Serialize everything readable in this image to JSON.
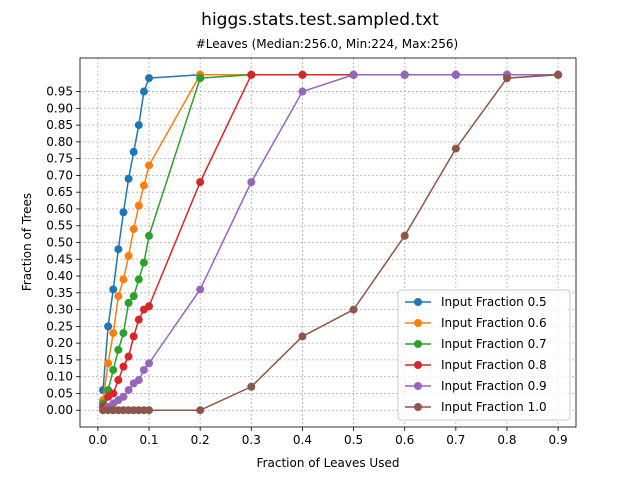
{
  "chart_data": {
    "type": "line",
    "title": "higgs.stats.test.sampled.txt",
    "subtitle": "#Leaves (Median:256.0, Min:224, Max:256)",
    "xlabel": "Fraction of Leaves Used",
    "ylabel": "Fraction of Trees",
    "xlim": [
      -0.035,
      0.935
    ],
    "ylim": [
      -0.05,
      1.05
    ],
    "x_ticks": [
      "0.0",
      "0.1",
      "0.2",
      "0.3",
      "0.4",
      "0.5",
      "0.6",
      "0.7",
      "0.8",
      "0.9"
    ],
    "x_tick_values": [
      0.0,
      0.1,
      0.2,
      0.3,
      0.4,
      0.5,
      0.6,
      0.7,
      0.8,
      0.9
    ],
    "y_ticks": [
      "0.00",
      "0.05",
      "0.10",
      "0.15",
      "0.20",
      "0.25",
      "0.30",
      "0.35",
      "0.40",
      "0.45",
      "0.50",
      "0.55",
      "0.60",
      "0.65",
      "0.70",
      "0.75",
      "0.80",
      "0.85",
      "0.90",
      "0.95"
    ],
    "y_tick_values": [
      0.0,
      0.05,
      0.1,
      0.15,
      0.2,
      0.25,
      0.3,
      0.35,
      0.4,
      0.45,
      0.5,
      0.55,
      0.6,
      0.65,
      0.7,
      0.75,
      0.8,
      0.85,
      0.9,
      0.95
    ],
    "grid": true,
    "legend_position": "lower-right",
    "series": [
      {
        "name": "Input Fraction 0.5",
        "color": "#1f77b4",
        "x": [
          0.01,
          0.02,
          0.03,
          0.04,
          0.05,
          0.06,
          0.07,
          0.08,
          0.09,
          0.1,
          0.2,
          0.3,
          0.4,
          0.5,
          0.6,
          0.7,
          0.8,
          0.9
        ],
        "y": [
          0.06,
          0.25,
          0.36,
          0.48,
          0.59,
          0.69,
          0.77,
          0.85,
          0.95,
          0.99,
          1.0,
          1.0,
          1.0,
          1.0,
          1.0,
          1.0,
          1.0,
          1.0
        ]
      },
      {
        "name": "Input Fraction 0.6",
        "color": "#ff7f0e",
        "x": [
          0.01,
          0.02,
          0.03,
          0.04,
          0.05,
          0.06,
          0.07,
          0.08,
          0.09,
          0.1,
          0.2,
          0.3,
          0.4,
          0.5,
          0.6,
          0.7,
          0.8,
          0.9
        ],
        "y": [
          0.03,
          0.14,
          0.23,
          0.34,
          0.39,
          0.46,
          0.54,
          0.61,
          0.67,
          0.73,
          1.0,
          1.0,
          1.0,
          1.0,
          1.0,
          1.0,
          1.0,
          1.0
        ]
      },
      {
        "name": "Input Fraction 0.7",
        "color": "#2ca02c",
        "x": [
          0.01,
          0.02,
          0.03,
          0.04,
          0.05,
          0.06,
          0.07,
          0.08,
          0.09,
          0.1,
          0.2,
          0.3,
          0.4,
          0.5,
          0.6,
          0.7,
          0.8,
          0.9
        ],
        "y": [
          0.02,
          0.06,
          0.12,
          0.18,
          0.23,
          0.32,
          0.34,
          0.39,
          0.44,
          0.52,
          0.99,
          1.0,
          1.0,
          1.0,
          1.0,
          1.0,
          1.0,
          1.0
        ]
      },
      {
        "name": "Input Fraction 0.8",
        "color": "#d62728",
        "x": [
          0.01,
          0.02,
          0.03,
          0.04,
          0.05,
          0.06,
          0.07,
          0.08,
          0.09,
          0.1,
          0.2,
          0.3,
          0.4,
          0.5,
          0.6,
          0.7,
          0.8,
          0.9
        ],
        "y": [
          0.01,
          0.04,
          0.05,
          0.09,
          0.13,
          0.16,
          0.22,
          0.27,
          0.3,
          0.31,
          0.68,
          1.0,
          1.0,
          1.0,
          1.0,
          1.0,
          1.0,
          1.0
        ]
      },
      {
        "name": "Input Fraction 0.9",
        "color": "#9467bd",
        "x": [
          0.01,
          0.02,
          0.03,
          0.04,
          0.05,
          0.06,
          0.07,
          0.08,
          0.09,
          0.1,
          0.2,
          0.3,
          0.4,
          0.5,
          0.6,
          0.7,
          0.8,
          0.9
        ],
        "y": [
          0.0,
          0.01,
          0.02,
          0.03,
          0.04,
          0.06,
          0.08,
          0.09,
          0.12,
          0.14,
          0.36,
          0.68,
          0.95,
          1.0,
          1.0,
          1.0,
          1.0,
          1.0
        ]
      },
      {
        "name": "Input Fraction 1.0",
        "color": "#8c564b",
        "x": [
          0.01,
          0.02,
          0.03,
          0.04,
          0.05,
          0.06,
          0.07,
          0.08,
          0.09,
          0.1,
          0.2,
          0.3,
          0.4,
          0.5,
          0.6,
          0.7,
          0.8,
          0.9
        ],
        "y": [
          0.0,
          0.0,
          0.0,
          0.0,
          0.0,
          0.0,
          0.0,
          0.0,
          0.0,
          0.0,
          0.0,
          0.07,
          0.22,
          0.3,
          0.52,
          0.78,
          0.99,
          1.0
        ]
      }
    ]
  }
}
